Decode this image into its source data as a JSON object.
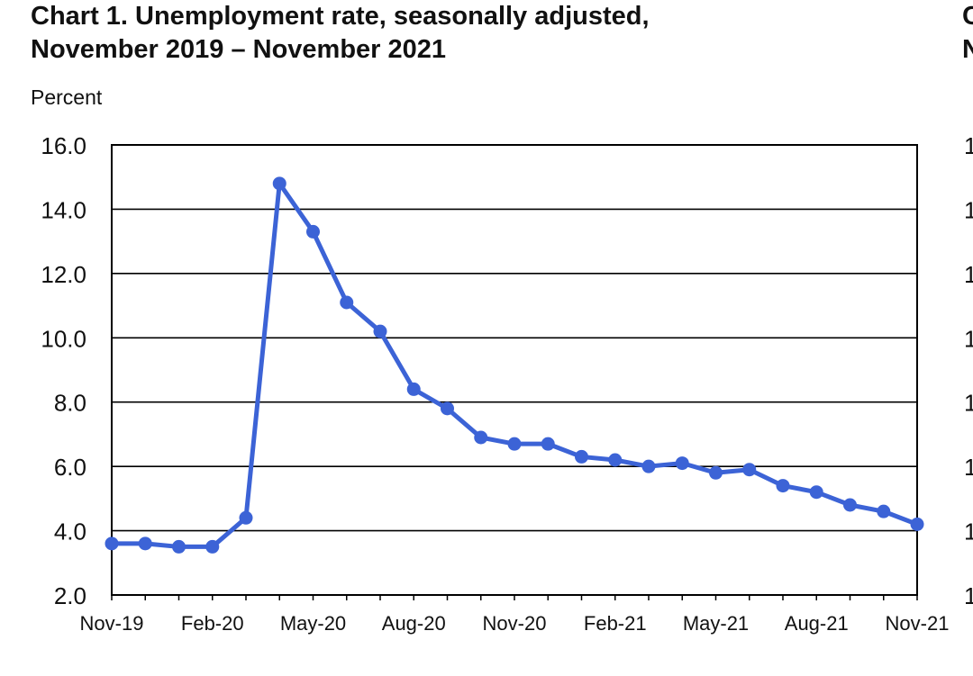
{
  "title_line1": "Chart 1. Unemployment rate, seasonally adjusted,",
  "title_line2": "November 2019 – November 2021",
  "ylabel": "Percent",
  "colors": {
    "series": "#3c63d6",
    "grid": "#000000"
  },
  "chart_data": {
    "type": "line",
    "title": "Chart 1. Unemployment rate, seasonally adjusted, November 2019 – November 2021",
    "ylabel": "Percent",
    "xlabel": "",
    "ylim": [
      2.0,
      16.0
    ],
    "yticks": [
      "2.0",
      "4.0",
      "6.0",
      "8.0",
      "10.0",
      "12.0",
      "14.0",
      "16.0"
    ],
    "xticks": [
      "Nov-19",
      "Feb-20",
      "May-20",
      "Aug-20",
      "Nov-20",
      "Feb-21",
      "May-21",
      "Aug-21",
      "Nov-21"
    ],
    "grid": true,
    "x": [
      "Nov-19",
      "Dec-19",
      "Jan-20",
      "Feb-20",
      "Mar-20",
      "Apr-20",
      "May-20",
      "Jun-20",
      "Jul-20",
      "Aug-20",
      "Sep-20",
      "Oct-20",
      "Nov-20",
      "Dec-20",
      "Jan-21",
      "Feb-21",
      "Mar-21",
      "Apr-21",
      "May-21",
      "Jun-21",
      "Jul-21",
      "Aug-21",
      "Sep-21",
      "Oct-21",
      "Nov-21"
    ],
    "series": [
      {
        "values": [
          3.6,
          3.6,
          3.5,
          3.5,
          4.4,
          14.8,
          13.3,
          11.1,
          10.2,
          8.4,
          7.8,
          6.9,
          6.7,
          6.7,
          6.3,
          6.2,
          6.0,
          6.1,
          5.8,
          5.9,
          5.4,
          5.2,
          4.8,
          4.6,
          4.2
        ]
      }
    ]
  }
}
